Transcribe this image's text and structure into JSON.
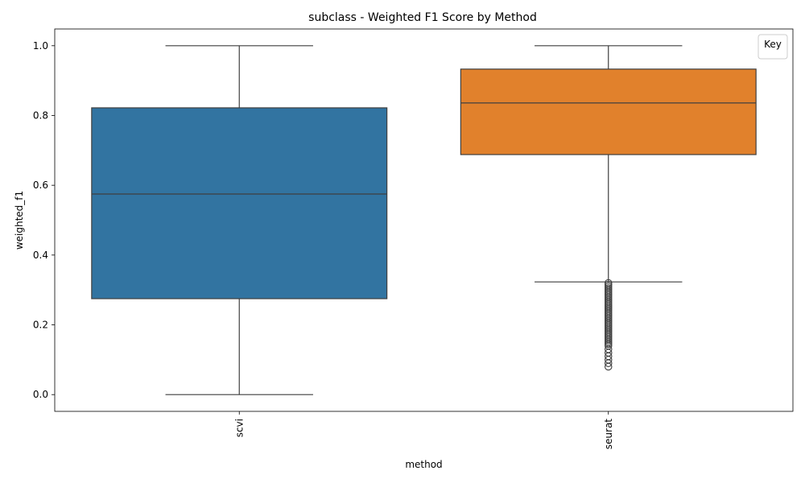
{
  "chart_data": {
    "type": "box",
    "title": "subclass - Weighted F1 Score by Method",
    "xlabel": "method",
    "ylabel": "weighted_f1",
    "ylim": [
      -0.048,
      1.048
    ],
    "yticks": [
      0.0,
      0.2,
      0.4,
      0.6,
      0.8,
      1.0
    ],
    "yticklabels": [
      "0.0",
      "0.2",
      "0.4",
      "0.6",
      "0.8",
      "1.0"
    ],
    "xtick_rotation": "vertical",
    "grid": false,
    "legend": {
      "title": "Key",
      "placement": "top-right",
      "entries": []
    },
    "categories": [
      "scvi",
      "seurat"
    ],
    "boxes": [
      {
        "category": "scvi",
        "color": "#3274a1",
        "whisker_low": 0.0,
        "q1": 0.275,
        "median": 0.575,
        "q3": 0.822,
        "whisker_high": 1.0,
        "outliers": []
      },
      {
        "category": "seurat",
        "color": "#e1812c",
        "whisker_low": 0.323,
        "q1": 0.688,
        "median": 0.836,
        "q3": 0.933,
        "whisker_high": 1.0,
        "outliers": [
          0.32,
          0.315,
          0.31,
          0.305,
          0.3,
          0.295,
          0.29,
          0.285,
          0.28,
          0.275,
          0.27,
          0.265,
          0.26,
          0.255,
          0.25,
          0.245,
          0.24,
          0.235,
          0.23,
          0.225,
          0.22,
          0.215,
          0.21,
          0.205,
          0.2,
          0.195,
          0.19,
          0.185,
          0.18,
          0.175,
          0.17,
          0.165,
          0.16,
          0.155,
          0.15,
          0.145,
          0.14,
          0.13,
          0.12,
          0.11,
          0.1,
          0.09,
          0.08
        ]
      }
    ],
    "edge_color": "#3f3f3f"
  }
}
